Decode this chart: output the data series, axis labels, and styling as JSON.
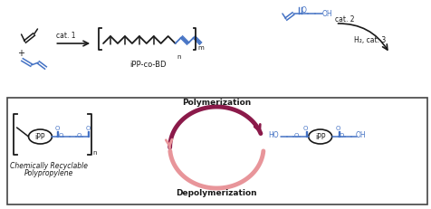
{
  "bg_color": "#ffffff",
  "border_color": "#333333",
  "blue_color": "#4472C4",
  "dark_color": "#1a1a1a",
  "dark_red": "#8B1A4A",
  "light_red": "#E8959A",
  "top_panel": {
    "propylene_label": "cat. 1",
    "polymer_label": "iPP-co-BD",
    "acrylate_cat": "cat. 2",
    "h2_cat": "H₂, cat. 3"
  },
  "bottom_panel": {
    "poly_label": "Polymerization",
    "depoly_label": "Depolymerization",
    "polymer_name_line1": "Chemically Recyclable",
    "polymer_name_line2": "Polypropylene",
    "iPP_label": "iPP",
    "subscript_n": "n",
    "subscript_m": "m"
  }
}
